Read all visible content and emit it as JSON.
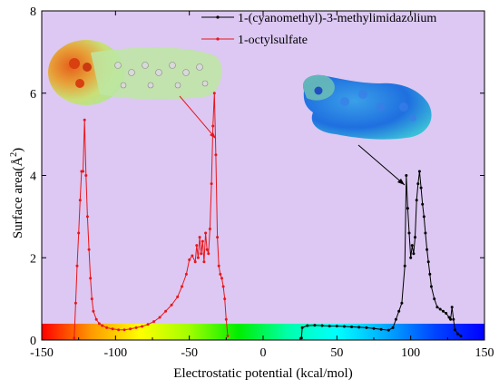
{
  "chart_data": {
    "type": "line",
    "xlabel": "Electrostatic potential (kcal/mol)",
    "ylabel_main": "Surface area(Å",
    "ylabel_sup": "2",
    "ylabel_close": ")",
    "xlim": [
      -150,
      150
    ],
    "ylim": [
      0,
      8
    ],
    "xticks": [
      "-150",
      "-100",
      "-50",
      "0",
      "50",
      "100",
      "150"
    ],
    "yticks": [
      "0",
      "2",
      "4",
      "6",
      "8"
    ],
    "plot_background": "#dcc8f2",
    "legend_placement": "top-right",
    "series": [
      {
        "name": "1-(cyanomethyl)-3-methylimidazolium",
        "color": "#000000",
        "points": [
          [
            26,
            0.05
          ],
          [
            26.5,
            0.3
          ],
          [
            30,
            0.35
          ],
          [
            35,
            0.36
          ],
          [
            40,
            0.35
          ],
          [
            45,
            0.34
          ],
          [
            50,
            0.34
          ],
          [
            55,
            0.33
          ],
          [
            60,
            0.32
          ],
          [
            65,
            0.31
          ],
          [
            70,
            0.3
          ],
          [
            75,
            0.28
          ],
          [
            80,
            0.26
          ],
          [
            85,
            0.24
          ],
          [
            88,
            0.3
          ],
          [
            90,
            0.5
          ],
          [
            92,
            0.7
          ],
          [
            94,
            0.9
          ],
          [
            96,
            1.8
          ],
          [
            97,
            4.0
          ],
          [
            98,
            3.2
          ],
          [
            99,
            2.6
          ],
          [
            100,
            2.0
          ],
          [
            101,
            2.3
          ],
          [
            102,
            2.1
          ],
          [
            103,
            2.5
          ],
          [
            104,
            3.4
          ],
          [
            105,
            3.8
          ],
          [
            106,
            4.1
          ],
          [
            107,
            3.7
          ],
          [
            108,
            3.3
          ],
          [
            109,
            3.0
          ],
          [
            110,
            2.6
          ],
          [
            111,
            2.2
          ],
          [
            112,
            1.9
          ],
          [
            113,
            1.6
          ],
          [
            114,
            1.3
          ],
          [
            116,
            1.0
          ],
          [
            118,
            0.8
          ],
          [
            120,
            0.75
          ],
          [
            122,
            0.7
          ],
          [
            124,
            0.65
          ],
          [
            126,
            0.55
          ],
          [
            127,
            0.5
          ],
          [
            128,
            0.8
          ],
          [
            129,
            0.5
          ],
          [
            130,
            0.25
          ],
          [
            132,
            0.15
          ],
          [
            134,
            0.1
          ]
        ]
      },
      {
        "name": "1-octylsulfate",
        "color": "#e8161c",
        "points": [
          [
            -128,
            0.05
          ],
          [
            -127,
            0.9
          ],
          [
            -126,
            1.8
          ],
          [
            -125,
            2.6
          ],
          [
            -124,
            3.4
          ],
          [
            -123,
            4.1
          ],
          [
            -122,
            4.1
          ],
          [
            -121,
            5.35
          ],
          [
            -120,
            4.0
          ],
          [
            -119,
            3.0
          ],
          [
            -118,
            2.2
          ],
          [
            -117,
            1.5
          ],
          [
            -116,
            1.0
          ],
          [
            -115,
            0.7
          ],
          [
            -113,
            0.5
          ],
          [
            -111,
            0.4
          ],
          [
            -109,
            0.35
          ],
          [
            -106,
            0.3
          ],
          [
            -102,
            0.27
          ],
          [
            -98,
            0.25
          ],
          [
            -94,
            0.25
          ],
          [
            -90,
            0.27
          ],
          [
            -86,
            0.3
          ],
          [
            -82,
            0.33
          ],
          [
            -78,
            0.38
          ],
          [
            -74,
            0.45
          ],
          [
            -70,
            0.55
          ],
          [
            -66,
            0.7
          ],
          [
            -62,
            0.85
          ],
          [
            -58,
            1.05
          ],
          [
            -55,
            1.3
          ],
          [
            -52,
            1.6
          ],
          [
            -50,
            1.95
          ],
          [
            -48,
            2.05
          ],
          [
            -46,
            1.9
          ],
          [
            -45,
            2.3
          ],
          [
            -44,
            2.0
          ],
          [
            -43,
            2.5
          ],
          [
            -42,
            2.1
          ],
          [
            -41,
            2.4
          ],
          [
            -40,
            1.9
          ],
          [
            -39,
            2.6
          ],
          [
            -38,
            2.2
          ],
          [
            -37,
            2.1
          ],
          [
            -36,
            2.7
          ],
          [
            -35,
            3.8
          ],
          [
            -34,
            5.2
          ],
          [
            -33,
            6.0
          ],
          [
            -32,
            4.5
          ],
          [
            -31,
            2.5
          ],
          [
            -30,
            1.8
          ],
          [
            -29,
            1.6
          ],
          [
            -28,
            1.5
          ],
          [
            -27,
            1.3
          ],
          [
            -26,
            1.0
          ],
          [
            -25,
            0.5
          ],
          [
            -24,
            0.1
          ]
        ]
      }
    ],
    "colorbar_stops": [
      "#ff0000",
      "#ff9900",
      "#ffff00",
      "#a0ff00",
      "#00ee00",
      "#00ffaa",
      "#00ffff",
      "#00aaff",
      "#0044ff",
      "#0000ff"
    ]
  }
}
